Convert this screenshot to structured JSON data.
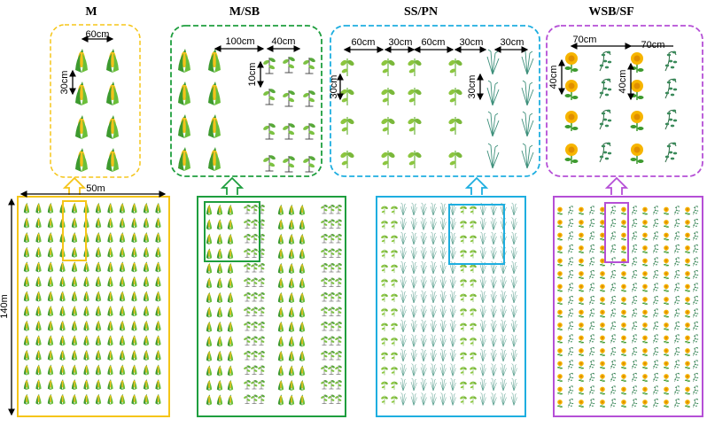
{
  "panels": [
    {
      "title": "M",
      "color": "#f5c518"
    },
    {
      "title": "M/SB",
      "color": "#1e9e3e"
    },
    {
      "title": "SS/PN",
      "color": "#1eaee0"
    },
    {
      "title": "WSB/SF",
      "color": "#b54fd6"
    }
  ],
  "labels": {
    "m_60": "60cm",
    "m_30": "30cm",
    "m_50m": "50m",
    "m_140m": "140m",
    "msb_100": "100cm",
    "msb_40": "40cm",
    "msb_10": "10cm",
    "sspn_60a": "60cm",
    "sspn_30a": "30cm",
    "sspn_60b": "60cm",
    "sspn_30b": "30cm",
    "sspn_30c": "30cm",
    "sspn_30v": "30cm",
    "sspn_30v2": "30cm",
    "wsb_70a": "70cm",
    "wsb_70b": "70cm",
    "wsb_40a": "40cm",
    "wsb_40b": "40cm"
  }
}
